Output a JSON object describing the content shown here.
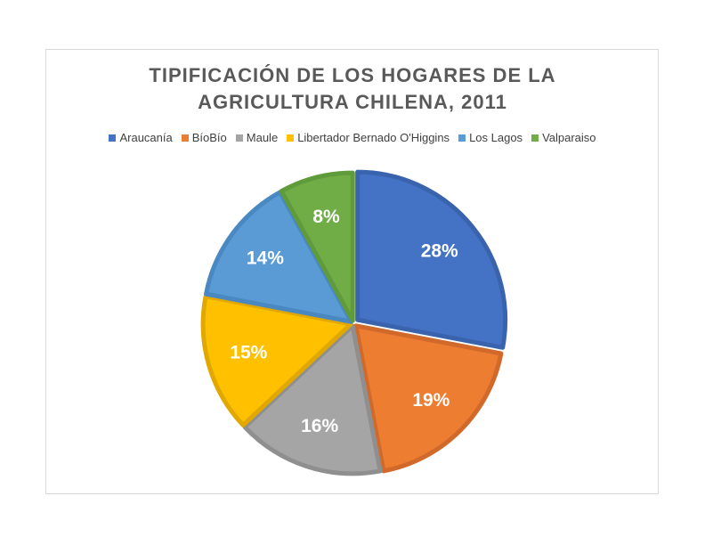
{
  "chart_data": {
    "type": "pie",
    "title_lines": [
      "TIPIFICACIÓN DE LOS HOGARES DE LA",
      "AGRICULTURA CHILENA,  2011"
    ],
    "legend_position": "top",
    "categories": [
      "Araucanía",
      "BíoBío",
      "Maule",
      "Libertador Bernado O'Higgins",
      "Los Lagos",
      "Valparaiso"
    ],
    "values": [
      28,
      19,
      16,
      15,
      14,
      8
    ],
    "labels": [
      "28%",
      "19%",
      "16%",
      "15%",
      "14%",
      "8%"
    ],
    "colors": [
      "#4472c4",
      "#ed7d31",
      "#a5a5a5",
      "#ffc000",
      "#5b9bd5",
      "#70ad47"
    ],
    "border_colors": [
      "#3a63ad",
      "#d0692a",
      "#8f8f8f",
      "#e0a800",
      "#4a88c2",
      "#5f9a3b"
    ]
  }
}
